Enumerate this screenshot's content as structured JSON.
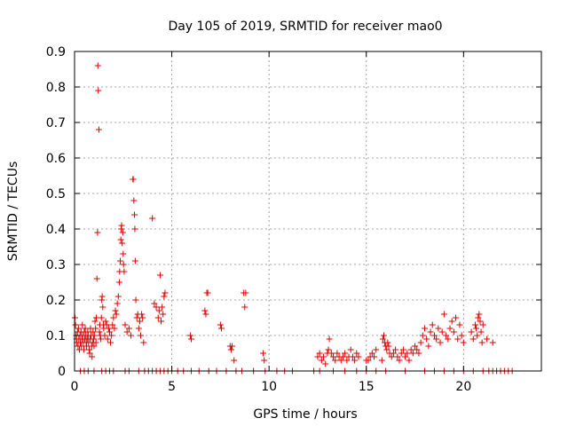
{
  "chart_data": {
    "type": "scatter",
    "title": "Day 105 of 2019, SRMTID for receiver mao0",
    "xlabel": "GPS time / hours",
    "ylabel": "SRMTID / TECUs",
    "xlim": [
      0,
      24
    ],
    "ylim": [
      0,
      0.9
    ],
    "x_ticks": [
      0,
      5,
      10,
      15,
      20
    ],
    "x_tick_labels": [
      "0",
      "5",
      "10",
      "15",
      "20"
    ],
    "y_ticks": [
      0,
      0.1,
      0.2,
      0.3,
      0.4,
      0.5,
      0.6,
      0.7,
      0.8,
      0.9
    ],
    "y_tick_labels": [
      "0",
      "0.1",
      "0.2",
      "0.3",
      "0.4",
      "0.5",
      "0.6",
      "0.7",
      "0.8",
      "0.9"
    ],
    "grid": true,
    "marker": "+",
    "series": [
      {
        "name": "SRMTID",
        "color": "#e00000",
        "x": [
          0.02,
          0.05,
          0.08,
          0.1,
          0.12,
          0.15,
          0.18,
          0.2,
          0.22,
          0.25,
          0.28,
          0.3,
          0.33,
          0.35,
          0.38,
          0.4,
          0.42,
          0.45,
          0.48,
          0.5,
          0.52,
          0.55,
          0.58,
          0.6,
          0.62,
          0.65,
          0.68,
          0.7,
          0.72,
          0.75,
          0.78,
          0.8,
          0.82,
          0.85,
          0.88,
          0.9,
          0.92,
          0.95,
          0.98,
          1.0,
          1.02,
          1.05,
          1.08,
          1.1,
          1.12,
          1.15,
          1.18,
          1.2,
          1.22,
          1.25,
          1.28,
          1.3,
          1.32,
          1.35,
          1.38,
          1.4,
          1.42,
          1.45,
          1.48,
          1.5,
          1.55,
          1.6,
          1.65,
          1.7,
          1.75,
          1.8,
          1.85,
          1.9,
          1.95,
          2.0,
          2.05,
          2.1,
          2.15,
          2.2,
          2.25,
          2.3,
          2.32,
          2.35,
          2.38,
          2.4,
          2.42,
          2.45,
          2.48,
          2.5,
          2.52,
          2.55,
          2.6,
          2.7,
          2.8,
          2.9,
          3.0,
          3.02,
          3.05,
          3.08,
          3.1,
          3.12,
          3.15,
          3.2,
          3.25,
          3.3,
          3.35,
          3.4,
          3.45,
          3.5,
          3.55,
          4.0,
          4.1,
          4.2,
          4.3,
          4.35,
          4.4,
          4.45,
          4.5,
          4.55,
          4.6,
          4.65,
          5.95,
          6.0,
          6.7,
          6.75,
          6.8,
          6.85,
          7.5,
          7.55,
          8.0,
          8.05,
          8.1,
          8.2,
          8.7,
          8.75,
          8.8,
          9.7,
          9.75,
          12.5,
          12.6,
          12.7,
          12.8,
          12.9,
          13.0,
          13.05,
          13.1,
          13.2,
          13.3,
          13.4,
          13.5,
          13.6,
          13.7,
          13.8,
          13.9,
          14.0,
          14.1,
          14.2,
          14.3,
          14.4,
          14.5,
          14.6,
          15.0,
          15.1,
          15.2,
          15.3,
          15.4,
          15.5,
          15.8,
          15.85,
          15.9,
          15.95,
          16.0,
          16.05,
          16.1,
          16.15,
          16.2,
          16.3,
          16.4,
          16.5,
          16.6,
          16.7,
          16.8,
          16.9,
          17.0,
          17.1,
          17.2,
          17.3,
          17.4,
          17.5,
          17.6,
          17.7,
          17.8,
          17.9,
          18.0,
          18.1,
          18.2,
          18.3,
          18.4,
          18.5,
          18.6,
          18.7,
          18.8,
          18.9,
          19.0,
          19.1,
          19.2,
          19.3,
          19.4,
          19.5,
          19.6,
          19.7,
          19.8,
          19.9,
          20.0,
          20.4,
          20.5,
          20.6,
          20.65,
          20.7,
          20.75,
          20.8,
          20.85,
          20.9,
          20.95,
          21.0,
          21.2,
          21.5,
          0.3,
          0.5,
          0.7,
          1.0,
          1.4,
          1.6,
          1.8,
          2.0,
          2.6,
          2.8,
          3.3,
          3.6,
          3.8,
          4.0,
          4.2,
          4.4,
          4.6,
          4.8,
          5.0,
          5.3,
          5.6,
          6.0,
          6.4,
          6.9,
          7.3,
          7.8,
          8.3,
          8.6,
          9.2,
          9.8,
          10.4,
          10.8,
          11.2,
          12.3,
          12.6,
          13.3,
          13.9,
          14.5,
          15.0,
          15.5,
          16.0,
          17.0,
          18.0,
          18.5,
          19.0,
          19.5,
          20.0,
          20.5,
          21.0,
          21.3,
          21.5,
          21.7,
          21.9,
          22.1,
          22.3,
          22.5
        ],
        "y": [
          0.15,
          0.13,
          0.1,
          0.09,
          0.08,
          0.11,
          0.07,
          0.12,
          0.09,
          0.06,
          0.1,
          0.08,
          0.11,
          0.07,
          0.09,
          0.13,
          0.1,
          0.08,
          0.06,
          0.11,
          0.09,
          0.12,
          0.1,
          0.08,
          0.07,
          0.09,
          0.11,
          0.1,
          0.08,
          0.06,
          0.05,
          0.09,
          0.12,
          0.1,
          0.07,
          0.04,
          0.08,
          0.11,
          0.09,
          0.07,
          0.1,
          0.14,
          0.12,
          0.08,
          0.15,
          0.26,
          0.39,
          0.86,
          0.79,
          0.68,
          0.11,
          0.13,
          0.1,
          0.09,
          0.15,
          0.2,
          0.21,
          0.18,
          0.13,
          0.12,
          0.1,
          0.14,
          0.13,
          0.09,
          0.12,
          0.11,
          0.08,
          0.1,
          0.13,
          0.15,
          0.12,
          0.17,
          0.16,
          0.19,
          0.21,
          0.25,
          0.28,
          0.31,
          0.37,
          0.4,
          0.41,
          0.36,
          0.39,
          0.33,
          0.3,
          0.28,
          0.13,
          0.11,
          0.12,
          0.1,
          0.54,
          0.54,
          0.48,
          0.44,
          0.4,
          0.31,
          0.2,
          0.15,
          0.16,
          0.12,
          0.14,
          0.1,
          0.16,
          0.15,
          0.08,
          0.43,
          0.19,
          0.18,
          0.15,
          0.17,
          0.27,
          0.14,
          0.18,
          0.16,
          0.21,
          0.22,
          0.1,
          0.09,
          0.17,
          0.16,
          0.22,
          0.22,
          0.13,
          0.12,
          0.07,
          0.06,
          0.07,
          0.03,
          0.22,
          0.18,
          0.22,
          0.05,
          0.03,
          0.04,
          0.05,
          0.03,
          0.04,
          0.02,
          0.05,
          0.06,
          0.09,
          0.05,
          0.04,
          0.03,
          0.05,
          0.04,
          0.03,
          0.04,
          0.05,
          0.03,
          0.04,
          0.06,
          0.04,
          0.03,
          0.05,
          0.04,
          0.03,
          0.03,
          0.04,
          0.05,
          0.04,
          0.06,
          0.03,
          0.09,
          0.1,
          0.08,
          0.07,
          0.06,
          0.08,
          0.07,
          0.05,
          0.04,
          0.05,
          0.06,
          0.04,
          0.03,
          0.05,
          0.06,
          0.04,
          0.05,
          0.03,
          0.06,
          0.05,
          0.07,
          0.06,
          0.05,
          0.08,
          0.1,
          0.12,
          0.09,
          0.07,
          0.11,
          0.13,
          0.1,
          0.09,
          0.12,
          0.08,
          0.11,
          0.16,
          0.1,
          0.09,
          0.12,
          0.14,
          0.11,
          0.15,
          0.09,
          0.13,
          0.1,
          0.08,
          0.11,
          0.09,
          0.13,
          0.12,
          0.1,
          0.15,
          0.16,
          0.14,
          0.11,
          0.08,
          0.13,
          0.09,
          0.08,
          0,
          0,
          0,
          0,
          0,
          0,
          0,
          0,
          0,
          0,
          0,
          0,
          0,
          0,
          0,
          0,
          0,
          0,
          0,
          0,
          0,
          0,
          0,
          0,
          0,
          0,
          0,
          0,
          0,
          0,
          0,
          0,
          0,
          0,
          0,
          0,
          0,
          0,
          0,
          0,
          0,
          0,
          0,
          0,
          0,
          0,
          0,
          0,
          0,
          0,
          0,
          0,
          0,
          0,
          0,
          0
        ]
      }
    ]
  }
}
